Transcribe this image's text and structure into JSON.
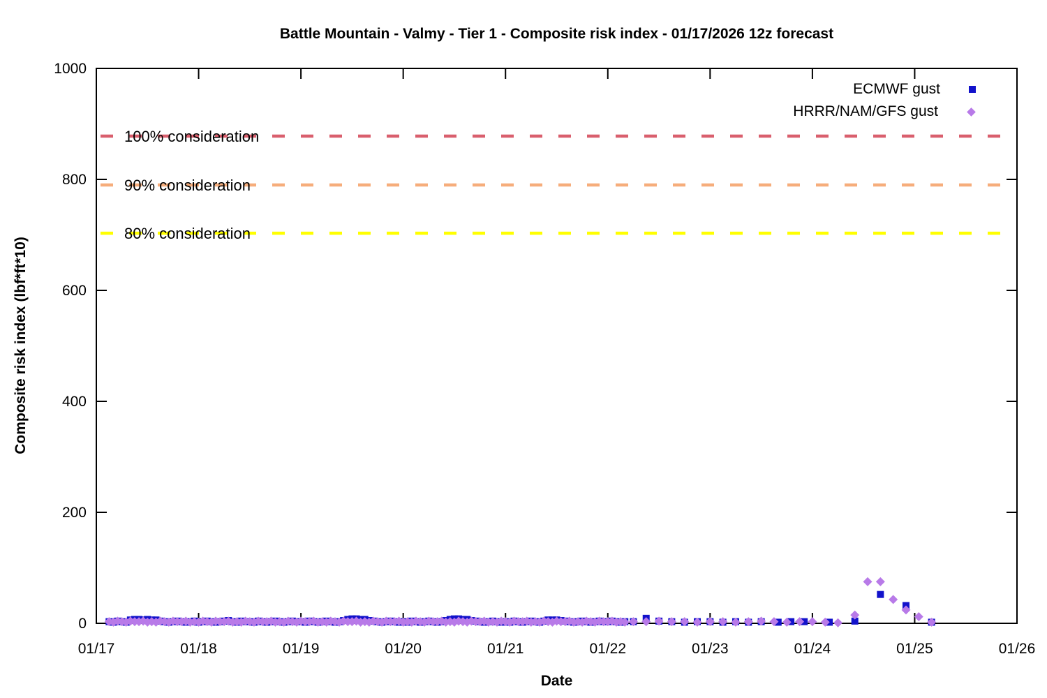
{
  "chart_data": {
    "type": "scatter",
    "title": "Battle Mountain - Valmy - Tier 1 - Composite risk index - 01/17/2026 12z forecast",
    "xlabel": "Date",
    "ylabel": "Composite risk index (lbf*ft*10)",
    "x_axis": {
      "label": "Date",
      "ticks": [
        "01/17",
        "01/18",
        "01/19",
        "01/20",
        "01/21",
        "01/22",
        "01/23",
        "01/24",
        "01/25",
        "01/26"
      ],
      "range_days": [
        0,
        9
      ],
      "grid": false
    },
    "y_axis": {
      "label": "Composite risk index (lbf*ft*10)",
      "ticks": [
        0,
        200,
        400,
        600,
        800,
        1000
      ],
      "range": [
        0,
        1000
      ],
      "grid": false
    },
    "legend_position": "top-right-inside",
    "thresholds": [
      {
        "label": "100% consideration",
        "value": 878,
        "color": "#d95f6d"
      },
      {
        "label": "90% consideration",
        "value": 790,
        "color": "#f6ad7b"
      },
      {
        "label": "80% consideration",
        "value": 703,
        "color": "#ffff00"
      }
    ],
    "series": [
      {
        "name": "ECMWF gust",
        "marker": "square",
        "color": "#1212cb",
        "dense": {
          "start_day": 0.125,
          "step_days": 0.0416667,
          "values": [
            3,
            2,
            4,
            3,
            2,
            6,
            7,
            7,
            6,
            7,
            6,
            6,
            4,
            3,
            2,
            3,
            4,
            3,
            2,
            3,
            4,
            2,
            3,
            4,
            3,
            2,
            3,
            4,
            5,
            3,
            2,
            4,
            3,
            3,
            2,
            4,
            3,
            2,
            3,
            4,
            3,
            2,
            3,
            4,
            3,
            3,
            2,
            4,
            3,
            2,
            3,
            4,
            3,
            2,
            3,
            5,
            7,
            8,
            8,
            7,
            7,
            5,
            4,
            3,
            2,
            3,
            4,
            3,
            2,
            3,
            2,
            4,
            3,
            2,
            3,
            4,
            3,
            2,
            3,
            5,
            7,
            8,
            8,
            7,
            7,
            5,
            4,
            3,
            2,
            3,
            4,
            3,
            2,
            3,
            2,
            4,
            3,
            2,
            3,
            4,
            3,
            2,
            4,
            6,
            6,
            6,
            5,
            4,
            3,
            2,
            3,
            4,
            3,
            2,
            3,
            4,
            3,
            3,
            4,
            3,
            2,
            3
          ]
        },
        "sparse": [
          [
            5.25,
            3
          ],
          [
            5.375,
            9
          ],
          [
            5.5,
            4
          ],
          [
            5.625,
            3
          ],
          [
            5.75,
            2
          ],
          [
            5.875,
            3
          ],
          [
            6.0,
            3
          ],
          [
            6.125,
            2
          ],
          [
            6.25,
            3
          ],
          [
            6.375,
            2
          ],
          [
            6.5,
            3
          ],
          [
            6.665,
            2
          ],
          [
            6.79,
            3
          ],
          [
            6.92,
            3
          ],
          [
            7.165,
            2
          ],
          [
            7.415,
            4
          ],
          [
            7.665,
            52
          ],
          [
            7.915,
            32
          ],
          [
            8.165,
            2
          ]
        ]
      },
      {
        "name": "HRRR/NAM/GFS gust",
        "marker": "diamond",
        "color": "#b87ae8",
        "dense": {
          "start_day": 0.125,
          "step_days": 0.0416667,
          "values": [
            3,
            2,
            4,
            3,
            2,
            4,
            3,
            3,
            4,
            2,
            3,
            2,
            4,
            3,
            2,
            4,
            3,
            3,
            4,
            2,
            3,
            2,
            4,
            3,
            2,
            4,
            3,
            3,
            4,
            2,
            3,
            2,
            4,
            3,
            2,
            4,
            3,
            3,
            4,
            2,
            3,
            2,
            4,
            3,
            2,
            4,
            3,
            3,
            4,
            2,
            3,
            2,
            4,
            3,
            2,
            4,
            3,
            3,
            4,
            2,
            3,
            2,
            4,
            3,
            2,
            4,
            3,
            3,
            4,
            2,
            3,
            2,
            4,
            3,
            2,
            4,
            3,
            3,
            4,
            2,
            3,
            2,
            4,
            3,
            2,
            4,
            3,
            3,
            4,
            2,
            3,
            2,
            4,
            3,
            2,
            4,
            3,
            3,
            4,
            2,
            3,
            2,
            4,
            3,
            2,
            4,
            3,
            3,
            4,
            2,
            3,
            2,
            4,
            3,
            2,
            4,
            3,
            3,
            4,
            2,
            3,
            2
          ]
        },
        "sparse": [
          [
            5.25,
            3
          ],
          [
            5.375,
            3
          ],
          [
            5.5,
            4
          ],
          [
            5.625,
            3
          ],
          [
            5.75,
            3
          ],
          [
            5.875,
            2
          ],
          [
            6.0,
            3
          ],
          [
            6.125,
            3
          ],
          [
            6.25,
            2
          ],
          [
            6.375,
            3
          ],
          [
            6.5,
            4
          ],
          [
            6.625,
            3
          ],
          [
            6.75,
            2
          ],
          [
            6.875,
            3
          ],
          [
            7.0,
            3
          ],
          [
            7.125,
            2
          ],
          [
            7.25,
            1
          ],
          [
            7.415,
            15
          ],
          [
            7.54,
            75
          ],
          [
            7.665,
            75
          ],
          [
            7.79,
            43
          ],
          [
            7.915,
            24
          ],
          [
            8.04,
            12
          ],
          [
            8.165,
            2
          ]
        ]
      }
    ],
    "colors": {
      "background": "#ffffff",
      "axis": "#000000",
      "text": "#000000"
    }
  }
}
